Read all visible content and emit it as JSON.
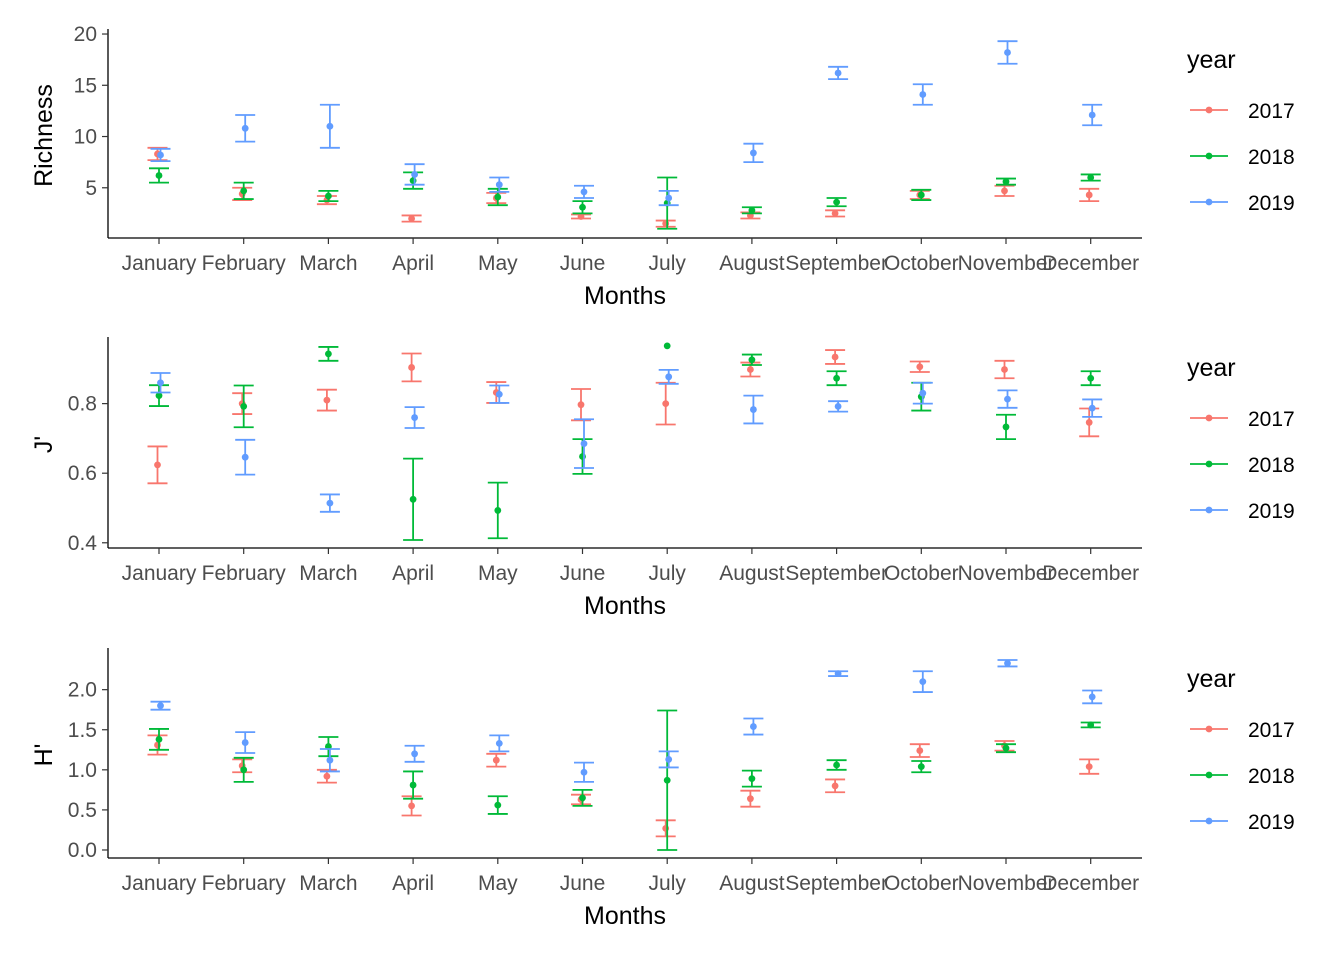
{
  "chart_data": [
    {
      "type": "scatter",
      "subtype": "point-with-errorbars",
      "metric": "richness",
      "ylabel": "Richness",
      "xlabel": "Months",
      "categories": [
        "January",
        "February",
        "March",
        "April",
        "May",
        "June",
        "July",
        "August",
        "September",
        "October",
        "November",
        "December"
      ],
      "ylim": [
        0.1,
        20.1
      ],
      "yticks": [
        5,
        10,
        15,
        20
      ],
      "ytick_labels": [
        "5",
        "10",
        "15",
        "20"
      ],
      "legend": {
        "title": "year",
        "placement": "right"
      },
      "series": [
        {
          "name": "2017",
          "color": "#F8766D",
          "values": [
            8.3,
            4.4,
            3.8,
            2.0,
            4.0,
            2.2,
            1.5,
            2.3,
            2.5,
            4.3,
            4.7,
            4.3
          ],
          "err": [
            0.6,
            0.6,
            0.4,
            0.3,
            0.5,
            0.2,
            0.3,
            0.3,
            0.3,
            0.4,
            0.5,
            0.6
          ]
        },
        {
          "name": "2018",
          "color": "#00BA38",
          "values": [
            6.2,
            4.7,
            4.2,
            5.7,
            4.1,
            3.1,
            3.5,
            2.8,
            3.6,
            4.3,
            5.6,
            6.0
          ],
          "err": [
            0.7,
            0.8,
            0.5,
            0.8,
            0.8,
            0.6,
            2.5,
            0.3,
            0.4,
            0.5,
            0.3,
            0.3
          ]
        },
        {
          "name": "2019",
          "color": "#619CFF",
          "values": [
            8.2,
            10.8,
            11.0,
            6.3,
            5.3,
            4.6,
            4.0,
            8.4,
            16.2,
            14.1,
            18.2,
            12.1
          ],
          "err": [
            0.6,
            1.3,
            2.1,
            1.0,
            0.7,
            0.6,
            0.7,
            0.9,
            0.6,
            1.0,
            1.1,
            1.0
          ]
        }
      ]
    },
    {
      "type": "scatter",
      "subtype": "point-with-errorbars",
      "metric": "evenness",
      "ylabel": "J'",
      "xlabel": "Months",
      "categories": [
        "January",
        "February",
        "March",
        "April",
        "May",
        "June",
        "July",
        "August",
        "September",
        "October",
        "November",
        "December"
      ],
      "ylim": [
        0.385,
        0.98
      ],
      "yticks": [
        0.4,
        0.6,
        0.8
      ],
      "ytick_labels": [
        "0.4",
        "0.6",
        "0.8"
      ],
      "legend": {
        "title": "year",
        "placement": "right"
      },
      "series": [
        {
          "name": "2017",
          "color": "#F8766D",
          "values": [
            0.624,
            0.8,
            0.81,
            0.904,
            0.832,
            0.797,
            0.8,
            0.898,
            0.934,
            0.906,
            0.898,
            0.746
          ],
          "err": [
            0.053,
            0.03,
            0.03,
            0.04,
            0.03,
            0.045,
            0.06,
            0.02,
            0.02,
            0.015,
            0.025,
            0.04
          ]
        },
        {
          "name": "2018",
          "color": "#00BA38",
          "values": [
            0.823,
            0.792,
            0.943,
            0.525,
            0.493,
            0.648,
            0.966,
            0.926,
            0.873,
            0.82,
            0.733,
            0.873
          ],
          "err": [
            0.03,
            0.06,
            0.02,
            0.117,
            0.08,
            0.05,
            0.0,
            0.015,
            0.02,
            0.04,
            0.035,
            0.02
          ]
        },
        {
          "name": "2019",
          "color": "#619CFF",
          "values": [
            0.86,
            0.646,
            0.514,
            0.76,
            0.827,
            0.685,
            0.877,
            0.783,
            0.792,
            0.83,
            0.813,
            0.787
          ],
          "err": [
            0.028,
            0.05,
            0.025,
            0.03,
            0.025,
            0.07,
            0.02,
            0.04,
            0.015,
            0.03,
            0.025,
            0.025
          ]
        }
      ]
    },
    {
      "type": "scatter",
      "subtype": "point-with-errorbars",
      "metric": "diversity",
      "ylabel": "H'",
      "xlabel": "Months",
      "categories": [
        "January",
        "February",
        "March",
        "April",
        "May",
        "June",
        "July",
        "August",
        "September",
        "October",
        "November",
        "December"
      ],
      "ylim": [
        -0.1,
        2.47
      ],
      "yticks": [
        0.0,
        0.5,
        1.0,
        1.5,
        2.0
      ],
      "ytick_labels": [
        "0.0",
        "0.5",
        "1.0",
        "1.5",
        "2.0"
      ],
      "legend": {
        "title": "year",
        "placement": "right"
      },
      "series": [
        {
          "name": "2017",
          "color": "#F8766D",
          "values": [
            1.31,
            1.05,
            0.92,
            0.55,
            1.12,
            0.63,
            0.27,
            0.64,
            0.8,
            1.24,
            1.3,
            1.04
          ],
          "err": [
            0.12,
            0.08,
            0.08,
            0.12,
            0.08,
            0.06,
            0.1,
            0.1,
            0.08,
            0.08,
            0.06,
            0.09
          ]
        },
        {
          "name": "2018",
          "color": "#00BA38",
          "values": [
            1.38,
            1.0,
            1.29,
            0.81,
            0.56,
            0.65,
            0.87,
            0.89,
            1.06,
            1.04,
            1.27,
            1.56
          ],
          "err": [
            0.13,
            0.15,
            0.12,
            0.17,
            0.11,
            0.1,
            0.87,
            0.1,
            0.06,
            0.07,
            0.05,
            0.03
          ]
        },
        {
          "name": "2019",
          "color": "#619CFF",
          "values": [
            1.8,
            1.34,
            1.12,
            1.2,
            1.33,
            0.97,
            1.13,
            1.54,
            2.2,
            2.1,
            2.33,
            1.91
          ],
          "err": [
            0.05,
            0.13,
            0.14,
            0.1,
            0.1,
            0.12,
            0.1,
            0.1,
            0.03,
            0.13,
            0.04,
            0.08
          ]
        }
      ]
    }
  ]
}
